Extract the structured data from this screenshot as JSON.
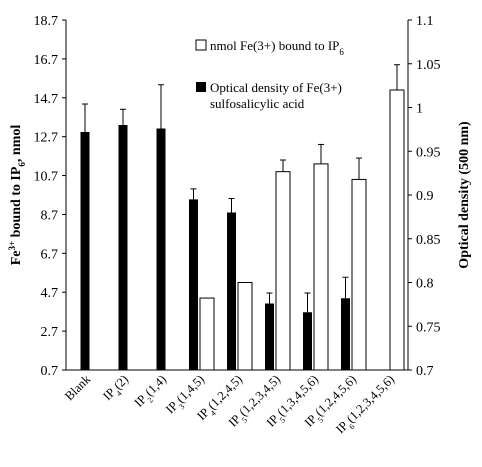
{
  "chart_data": {
    "type": "bar",
    "left_axis": {
      "label_parts": [
        "Fe",
        "3+",
        " bound to IP",
        "6",
        ", nmol"
      ],
      "ticks": [
        "0.7",
        "2.7",
        "4.7",
        "6.7",
        "8.7",
        "10.7",
        "12.7",
        "14.7",
        "16.7",
        "18.7"
      ],
      "range": [
        0.7,
        18.7
      ]
    },
    "right_axis": {
      "label": "Optical density (500 nm)",
      "ticks": [
        "0.7",
        "0.75",
        "0.8",
        "0.85",
        "0.9",
        "0.95",
        "1",
        "1.05",
        "1.1"
      ],
      "range": [
        0.7,
        1.1
      ]
    },
    "categories": [
      {
        "parts": [
          "Blank"
        ]
      },
      {
        "parts": [
          "IP",
          "4",
          "(2)"
        ]
      },
      {
        "parts": [
          "IP",
          "2",
          "(1,4)"
        ]
      },
      {
        "parts": [
          "IP",
          "3",
          "(1,4,5)"
        ]
      },
      {
        "parts": [
          "IP",
          "4",
          "(1,2,4,5)"
        ]
      },
      {
        "parts": [
          "IP",
          "5",
          "(1,2,3,4,5)"
        ]
      },
      {
        "parts": [
          "IP",
          "5",
          "(1,3,4,5,6)"
        ]
      },
      {
        "parts": [
          "IP",
          "5",
          "(1,2,4,5,6)"
        ]
      },
      {
        "parts": [
          "IP",
          "6",
          "(1,2,3,4,5,6)"
        ]
      }
    ],
    "series": [
      {
        "name_parts": [
          "nmol Fe(3+) bound to IP",
          "6"
        ],
        "style": "open",
        "axis": "left",
        "values": [
          null,
          null,
          null,
          4.4,
          5.2,
          10.9,
          11.3,
          10.5,
          15.1
        ],
        "errors": [
          null,
          null,
          null,
          0,
          0,
          0.6,
          1.0,
          1.1,
          1.3
        ]
      },
      {
        "name_lines": [
          "Optical density of  Fe(3+)",
          "sulfosalicylic acid"
        ],
        "style": "filled",
        "axis": "right",
        "values": [
          0.972,
          0.98,
          0.976,
          0.895,
          0.88,
          0.776,
          0.766,
          0.782,
          null
        ],
        "errors": [
          0.032,
          0.018,
          0.05,
          0.012,
          0.016,
          0.012,
          0.022,
          0.024,
          null
        ]
      }
    ],
    "legend_position": "top-right",
    "colors": {
      "filled": "#000000",
      "open": "#ffffff",
      "outline": "#000000"
    }
  }
}
